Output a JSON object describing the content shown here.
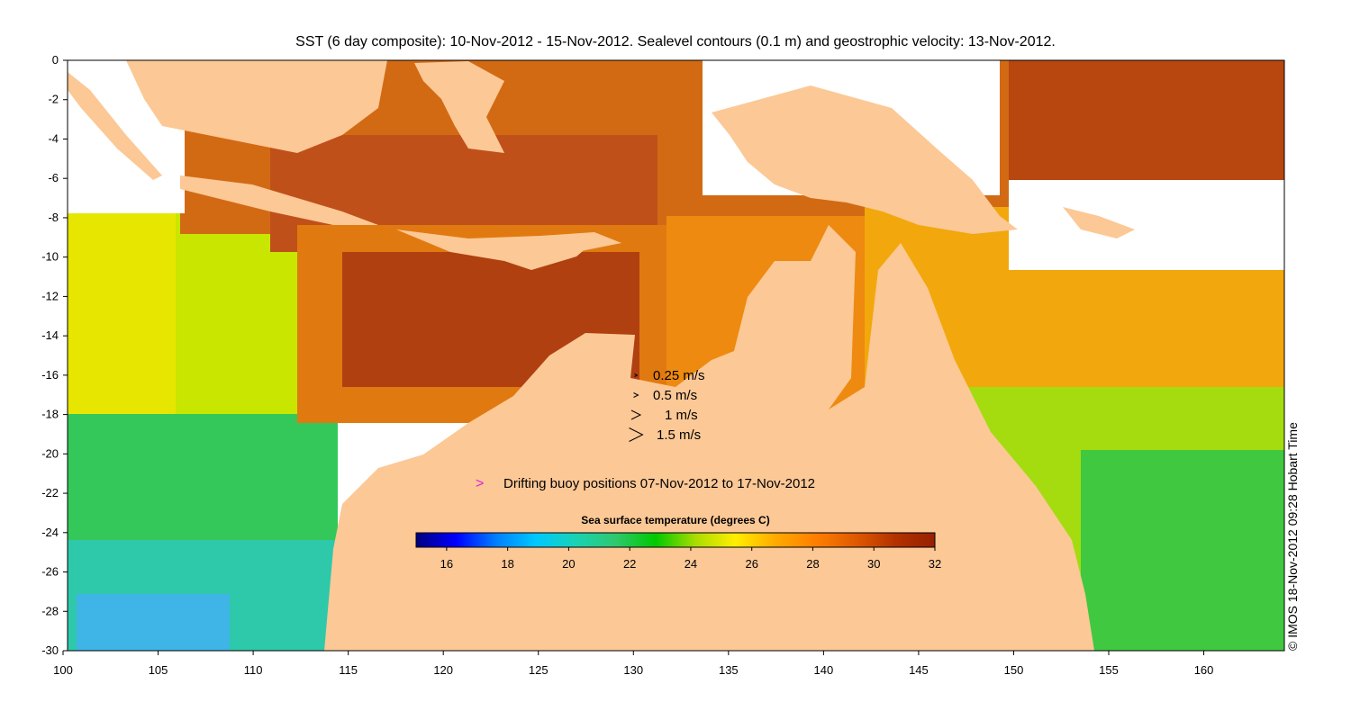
{
  "title": "SST (6 day composite): 10-Nov-2012 - 15-Nov-2012. Sealevel contours (0.1 m) and geostrophic velocity: 13-Nov-2012.",
  "map": {
    "lon_range": [
      100,
      164
    ],
    "lat_range": [
      -30,
      0
    ],
    "lon_ticks": [
      "100",
      "105",
      "110",
      "115",
      "120",
      "125",
      "130",
      "135",
      "140",
      "145",
      "150",
      "155",
      "160"
    ],
    "lat_ticks": [
      "0",
      "-2",
      "-4",
      "-6",
      "-8",
      "-10",
      "-12",
      "-14",
      "-16",
      "-18",
      "-20",
      "-22",
      "-24",
      "-26",
      "-28",
      "-30"
    ],
    "land_color": "#fcc896",
    "no_data_color": "#ffffff"
  },
  "velocity_legend": {
    "items": [
      "0.25 m/s",
      "0.5 m/s",
      "1 m/s",
      "1.5 m/s"
    ]
  },
  "buoy_legend": {
    "symbol": ">",
    "label": "Drifting buoy positions 07-Nov-2012 to 17-Nov-2012",
    "color": "#e020e0"
  },
  "colorbar": {
    "title": "Sea surface temperature (degrees C)",
    "range": [
      15,
      32
    ],
    "ticks": [
      "16",
      "18",
      "20",
      "22",
      "24",
      "26",
      "28",
      "30",
      "32"
    ],
    "colors": [
      "#00007f",
      "#0000ff",
      "#007fff",
      "#00c8ff",
      "#19d2b4",
      "#2fc86e",
      "#00c800",
      "#aadd00",
      "#ffee00",
      "#ffaa00",
      "#ff7f00",
      "#e05a00",
      "#b43200",
      "#962000"
    ]
  },
  "credit": "© IMOS 18-Nov-2012 09:28 Hobart Time"
}
